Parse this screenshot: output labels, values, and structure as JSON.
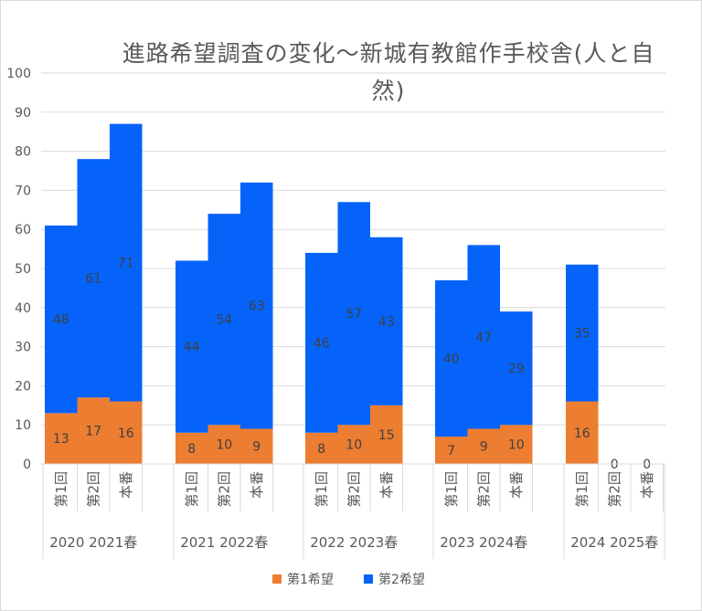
{
  "chart_data": {
    "type": "bar",
    "stacked": true,
    "title": "進路希望調査の変化～新城有教館作手校舎(人と自然)",
    "ylim": [
      0,
      100
    ],
    "y_ticks": [
      "0",
      "10",
      "20",
      "30",
      "40",
      "50",
      "60",
      "70",
      "80",
      "90",
      "100"
    ],
    "grid": true,
    "legend_position": "bottom",
    "groups": [
      {
        "label": "2020 2021春",
        "categories": [
          "第1回",
          "第2回",
          "本番"
        ]
      },
      {
        "label": "2021 2022春",
        "categories": [
          "第1回",
          "第2回",
          "本番"
        ]
      },
      {
        "label": "2022 2023春",
        "categories": [
          "第1回",
          "第2回",
          "本番"
        ]
      },
      {
        "label": "2023 2024春",
        "categories": [
          "第1回",
          "第2回",
          "本番"
        ]
      },
      {
        "label": "2024 2025春",
        "categories": [
          "第1回",
          "第2回",
          "本番"
        ]
      }
    ],
    "series": [
      {
        "name": "第1希望",
        "color": "#ED7D31",
        "values": [
          [
            13,
            17,
            16
          ],
          [
            8,
            10,
            9
          ],
          [
            8,
            10,
            15
          ],
          [
            7,
            9,
            10
          ],
          [
            16,
            0,
            0
          ]
        ]
      },
      {
        "name": "第2希望",
        "color": "#0563FA",
        "values": [
          [
            48,
            61,
            71
          ],
          [
            44,
            54,
            63
          ],
          [
            46,
            57,
            43
          ],
          [
            40,
            47,
            29
          ],
          [
            35,
            null,
            null
          ]
        ]
      }
    ]
  }
}
